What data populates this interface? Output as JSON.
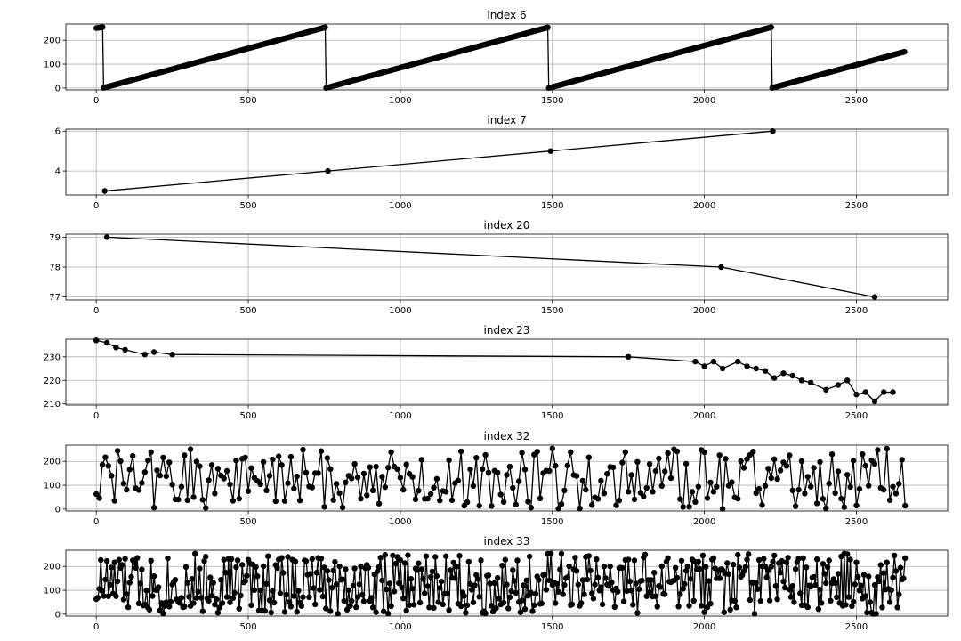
{
  "chart_data": [
    {
      "type": "line",
      "title": "index 6",
      "xlim": [
        -100,
        2800
      ],
      "ylim": [
        -8,
        268
      ],
      "xticks": [
        0,
        500,
        1000,
        1500,
        2000,
        2500
      ],
      "yticks": [
        0,
        100,
        200
      ],
      "grid": true,
      "marker": "o",
      "pattern": {
        "kind": "sawtooth",
        "x_start": 0,
        "x_end": 2660,
        "step": 3,
        "period": 733,
        "phase": 22,
        "y_start": 251,
        "y_end": 150,
        "value_min": 0,
        "value_max": 255
      },
      "series": [
        {
          "x": [
            0,
            5,
            10,
            15,
            20,
            22,
            25,
            755,
            760,
            1488,
            1493,
            2221,
            2226,
            2660
          ],
          "y": [
            251,
            252,
            253,
            254,
            255,
            0,
            1,
            255,
            0,
            255,
            0,
            255,
            0,
            150
          ]
        }
      ]
    },
    {
      "type": "line",
      "title": "index 7",
      "xlim": [
        -100,
        2800
      ],
      "ylim": [
        2.8,
        6.1
      ],
      "xticks": [
        0,
        500,
        1000,
        1500,
        2000,
        2500
      ],
      "yticks": [
        4,
        6
      ],
      "grid": true,
      "marker": "o",
      "series": [
        {
          "x": [
            28,
            762,
            1494,
            2225
          ],
          "y": [
            3,
            4,
            5,
            6
          ]
        }
      ]
    },
    {
      "type": "line",
      "title": "index 20",
      "xlim": [
        -100,
        2800
      ],
      "ylim": [
        76.9,
        79.1
      ],
      "xticks": [
        0,
        500,
        1000,
        1500,
        2000,
        2500
      ],
      "yticks": [
        77,
        78,
        79
      ],
      "grid": true,
      "marker": "o",
      "series": [
        {
          "x": [
            35,
            2055,
            2560
          ],
          "y": [
            79,
            78,
            77
          ]
        }
      ]
    },
    {
      "type": "line",
      "title": "index 23",
      "xlim": [
        -100,
        2800
      ],
      "ylim": [
        209.5,
        237.5
      ],
      "xticks": [
        0,
        500,
        1000,
        1500,
        2000,
        2500
      ],
      "yticks": [
        210,
        220,
        230
      ],
      "grid": true,
      "marker": "o",
      "series": [
        {
          "x": [
            0,
            35,
            65,
            95,
            160,
            190,
            250,
            1750,
            1970,
            2000,
            2030,
            2060,
            2110,
            2140,
            2170,
            2200,
            2230,
            2260,
            2290,
            2320,
            2350,
            2400,
            2440,
            2470,
            2500,
            2530,
            2560,
            2590,
            2620
          ],
          "y": [
            237,
            236,
            234,
            233,
            231,
            232,
            231,
            230,
            228,
            226,
            228,
            225,
            228,
            226,
            225,
            224,
            221,
            223,
            222,
            220,
            219,
            216,
            218,
            220,
            214,
            215,
            211,
            215,
            215
          ]
        }
      ]
    },
    {
      "type": "line",
      "title": "index 32",
      "xlim": [
        -100,
        2800
      ],
      "ylim": [
        -8,
        268
      ],
      "xticks": [
        0,
        500,
        1000,
        1500,
        2000,
        2500
      ],
      "yticks": [
        0,
        100,
        200
      ],
      "grid": true,
      "marker": "o",
      "pattern": {
        "kind": "uniform-noise",
        "x_start": 0,
        "x_end": 2660,
        "step": 10,
        "value_min": 0,
        "value_max": 255,
        "seed": 32
      },
      "series": [
        {
          "x": [
            0,
            10,
            20,
            2650,
            2660
          ],
          "y": [
            220,
            140,
            60,
            10,
            0
          ]
        }
      ]
    },
    {
      "type": "line",
      "title": "index 33",
      "xlim": [
        -100,
        2800
      ],
      "ylim": [
        -8,
        268
      ],
      "xticks": [
        0,
        500,
        1000,
        1500,
        2000,
        2500
      ],
      "yticks": [
        0,
        100,
        200
      ],
      "grid": true,
      "marker": "o",
      "pattern": {
        "kind": "uniform-noise",
        "x_start": 0,
        "x_end": 2660,
        "step": 5,
        "value_min": 0,
        "value_max": 255,
        "seed": 33
      },
      "series": [
        {
          "x": [
            0,
            5,
            10,
            2650,
            2660
          ],
          "y": [
            80,
            220,
            130,
            140,
            50
          ]
        }
      ]
    }
  ]
}
